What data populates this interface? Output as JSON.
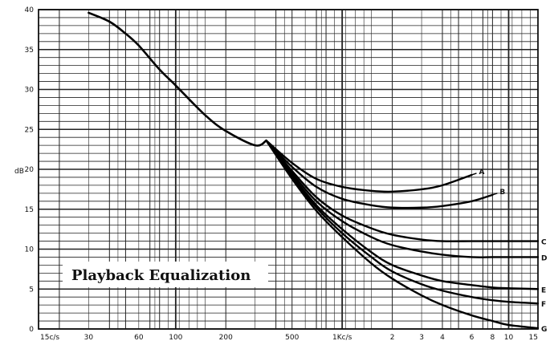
{
  "chart_data": {
    "type": "line",
    "title": "Playback Equalization",
    "ylabel": "dB",
    "xlabel": "",
    "xscale": "log",
    "xlim": [
      15,
      15000
    ],
    "ylim": [
      0,
      40
    ],
    "grid": true,
    "y_ticks": [
      0,
      5,
      10,
      15,
      20,
      25,
      30,
      35,
      40
    ],
    "x_tick_labels": [
      {
        "x": 15,
        "label": "15c/s"
      },
      {
        "x": 30,
        "label": "30"
      },
      {
        "x": 60,
        "label": "60"
      },
      {
        "x": 100,
        "label": "100"
      },
      {
        "x": 200,
        "label": "200"
      },
      {
        "x": 500,
        "label": "500"
      },
      {
        "x": 1000,
        "label": "1Kc/s"
      },
      {
        "x": 2000,
        "label": "2"
      },
      {
        "x": 3000,
        "label": "3"
      },
      {
        "x": 4000,
        "label": "4"
      },
      {
        "x": 6000,
        "label": "6"
      },
      {
        "x": 8000,
        "label": "8"
      },
      {
        "x": 10000,
        "label": "10"
      },
      {
        "x": 15000,
        "label": "15"
      }
    ],
    "common_curve": {
      "x": [
        30,
        40,
        50,
        60,
        80,
        100,
        150,
        200,
        300,
        350
      ],
      "y": [
        39.6,
        38.5,
        37.0,
        35.5,
        32.5,
        30.5,
        26.8,
        24.8,
        23.0,
        23.6
      ]
    },
    "series": [
      {
        "name": "A",
        "x": [
          350,
          500,
          700,
          1000,
          1500,
          2000,
          3000,
          4000,
          6000
        ],
        "y": [
          23.6,
          20.8,
          18.8,
          17.8,
          17.3,
          17.2,
          17.5,
          18.0,
          19.3
        ]
      },
      {
        "name": "B",
        "x": [
          350,
          500,
          700,
          1000,
          1500,
          2000,
          3000,
          4000,
          6000,
          8000
        ],
        "y": [
          23.6,
          20.3,
          17.8,
          16.3,
          15.5,
          15.2,
          15.2,
          15.4,
          16.0,
          16.8
        ]
      },
      {
        "name": "C",
        "x": [
          350,
          500,
          700,
          1000,
          1500,
          2000,
          3000,
          4000,
          6000,
          8000,
          10000,
          15000
        ],
        "y": [
          23.6,
          19.8,
          16.5,
          14.2,
          12.6,
          11.8,
          11.2,
          11.0,
          11.0,
          11.0,
          11.0,
          11.0
        ]
      },
      {
        "name": "D",
        "x": [
          350,
          500,
          700,
          1000,
          1500,
          2000,
          3000,
          4000,
          6000,
          8000,
          10000,
          15000
        ],
        "y": [
          23.6,
          19.5,
          16.0,
          13.5,
          11.5,
          10.5,
          9.7,
          9.3,
          9.0,
          9.0,
          9.0,
          9.0
        ]
      },
      {
        "name": "E",
        "x": [
          350,
          500,
          700,
          1000,
          1500,
          2000,
          3000,
          4000,
          6000,
          8000,
          10000,
          15000
        ],
        "y": [
          23.6,
          19.2,
          15.5,
          12.5,
          9.6,
          8.0,
          6.7,
          6.0,
          5.5,
          5.2,
          5.1,
          5.0
        ]
      },
      {
        "name": "F",
        "x": [
          350,
          500,
          700,
          1000,
          1500,
          2000,
          3000,
          4000,
          6000,
          8000,
          10000,
          15000
        ],
        "y": [
          23.6,
          19.0,
          15.2,
          12.0,
          9.0,
          7.2,
          5.6,
          4.8,
          4.0,
          3.6,
          3.4,
          3.2
        ]
      },
      {
        "name": "G",
        "x": [
          350,
          500,
          700,
          1000,
          1500,
          2000,
          3000,
          4000,
          6000,
          8000,
          10000,
          15000
        ],
        "y": [
          23.6,
          18.8,
          14.8,
          11.5,
          8.2,
          6.3,
          4.2,
          3.0,
          1.7,
          1.0,
          0.5,
          0.1
        ]
      }
    ]
  }
}
